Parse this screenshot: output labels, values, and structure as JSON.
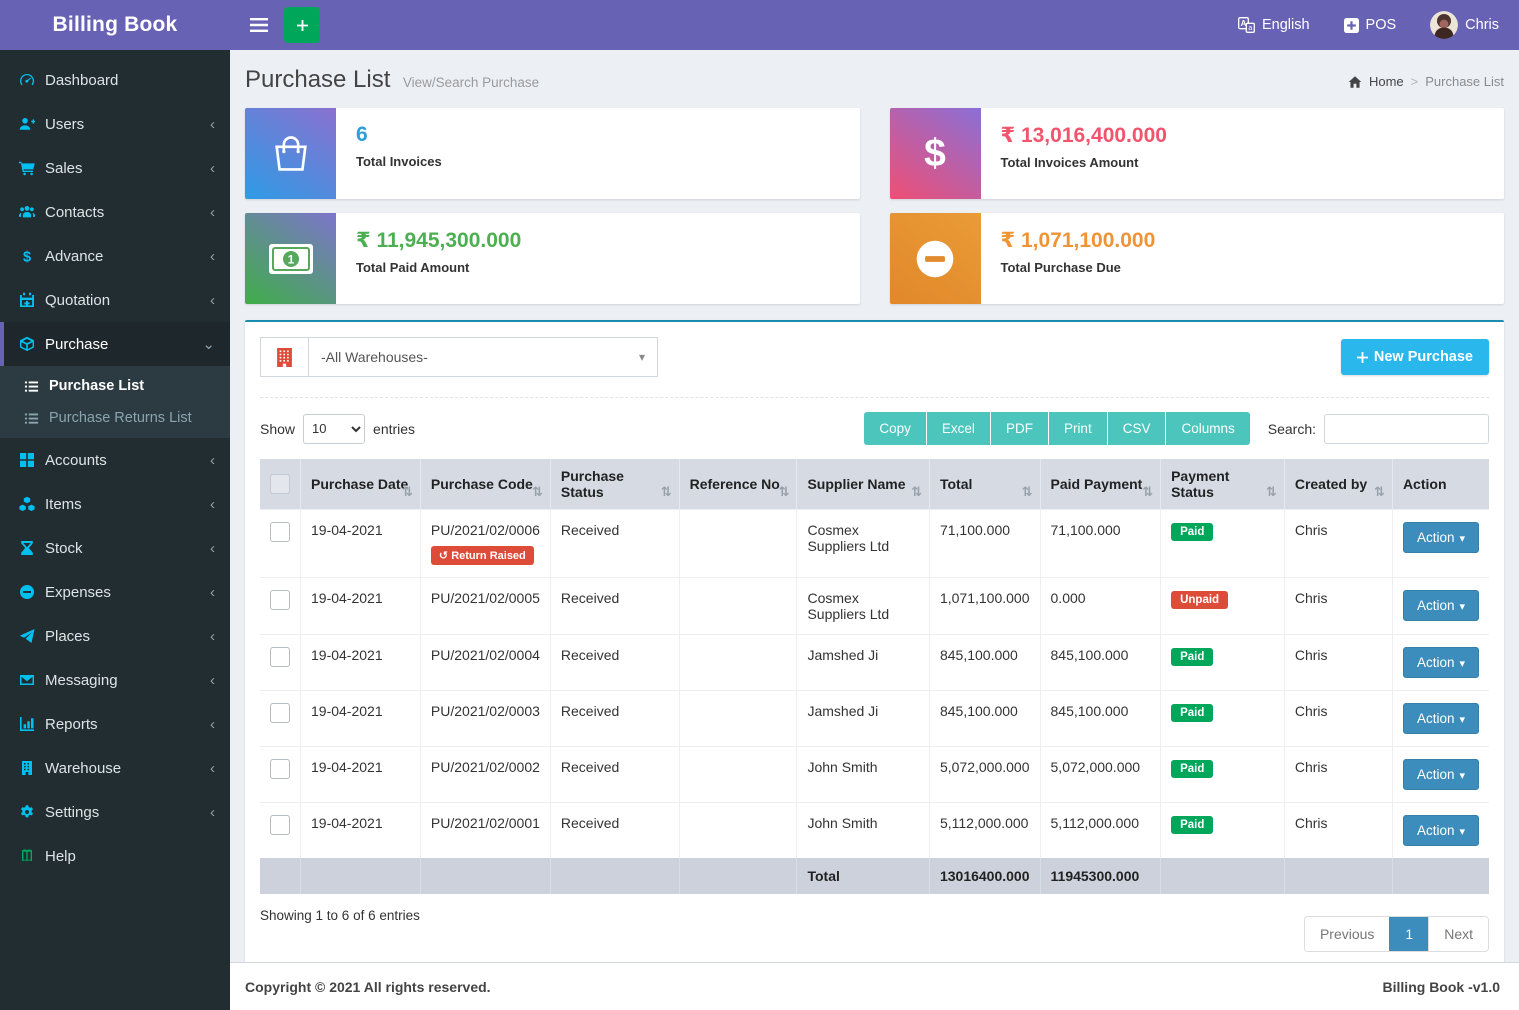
{
  "topbar": {
    "brand": "Billing Book",
    "language_label": "English",
    "pos_label": "POS",
    "user_name": "Chris"
  },
  "sidebar": {
    "items": [
      {
        "label": "Dashboard",
        "icon": "dashboard-icon"
      },
      {
        "label": "Users",
        "icon": "users-icon",
        "chevron": true
      },
      {
        "label": "Sales",
        "icon": "cart-icon",
        "chevron": true
      },
      {
        "label": "Contacts",
        "icon": "contacts-icon",
        "chevron": true
      },
      {
        "label": "Advance",
        "icon": "dollar-icon",
        "chevron": true
      },
      {
        "label": "Quotation",
        "icon": "calendar-icon",
        "chevron": true
      },
      {
        "label": "Purchase",
        "icon": "cube-icon",
        "active": true,
        "expanded": true,
        "submenu": [
          {
            "label": "Purchase List",
            "active": true
          },
          {
            "label": "Purchase Returns List",
            "active": false
          }
        ]
      },
      {
        "label": "Accounts",
        "icon": "grid-icon",
        "chevron": true
      },
      {
        "label": "Items",
        "icon": "items-icon",
        "chevron": true
      },
      {
        "label": "Stock",
        "icon": "hourglass-icon",
        "chevron": true
      },
      {
        "label": "Expenses",
        "icon": "minus-circle-icon",
        "chevron": true
      },
      {
        "label": "Places",
        "icon": "paper-plane-icon",
        "chevron": true
      },
      {
        "label": "Messaging",
        "icon": "envelope-icon",
        "chevron": true
      },
      {
        "label": "Reports",
        "icon": "chart-icon",
        "chevron": true
      },
      {
        "label": "Warehouse",
        "icon": "warehouse-icon",
        "chevron": true
      },
      {
        "label": "Settings",
        "icon": "gear-icon",
        "chevron": true
      },
      {
        "label": "Help",
        "icon": "help-icon",
        "icon_color": "#00a65a"
      }
    ]
  },
  "page": {
    "title": "Purchase List",
    "subtitle": "View/Search Purchase",
    "breadcrumb_home": "Home",
    "breadcrumb_current": "Purchase List"
  },
  "stats": [
    {
      "value": "6",
      "label": "Total Invoices",
      "value_color": "#2d9fd8",
      "icon": "bag-icon",
      "gradient": [
        "#2e9ce6",
        "#8a70cf"
      ]
    },
    {
      "value": "₹ 13,016,400.000",
      "label": "Total Invoices Amount",
      "value_color": "#f2536d",
      "icon": "dollar-big-icon",
      "gradient": [
        "#ef4f75",
        "#8a6fd6"
      ]
    },
    {
      "value": "₹ 11,945,300.000",
      "label": "Total Paid Amount",
      "value_color": "#4caf50",
      "icon": "money-icon",
      "gradient": [
        "#3fae49",
        "#7d74cc"
      ]
    },
    {
      "value": "₹ 1,071,100.000",
      "label": "Total Purchase Due",
      "value_color": "#ef9434",
      "icon": "minus-big-icon",
      "gradient": [
        "#e1882a",
        "#ea9b37"
      ]
    }
  ],
  "toolbar": {
    "warehouse_selected": "-All Warehouses-",
    "new_purchase_label": "New Purchase"
  },
  "table_controls": {
    "show_label": "Show",
    "page_size": "10",
    "entries_label": "entries",
    "export_buttons": [
      "Copy",
      "Excel",
      "PDF",
      "Print",
      "CSV",
      "Columns"
    ],
    "search_label": "Search:"
  },
  "table": {
    "headers": [
      {
        "label": "",
        "sortable": false,
        "checkbox": true
      },
      {
        "label": "Purchase Date",
        "sortable": true
      },
      {
        "label": "Purchase Code",
        "sortable": true
      },
      {
        "label": "Purchase Status",
        "sortable": true
      },
      {
        "label": "Reference No.",
        "sortable": true
      },
      {
        "label": "Supplier Name",
        "sortable": true
      },
      {
        "label": "Total",
        "sortable": true
      },
      {
        "label": "Paid Payment",
        "sortable": true
      },
      {
        "label": "Payment Status",
        "sortable": true
      },
      {
        "label": "Created by",
        "sortable": true
      },
      {
        "label": "Action",
        "sortable": false
      }
    ],
    "rows": [
      {
        "date": "19-04-2021",
        "code": "PU/2021/02/0006",
        "return_badge": "Return Raised",
        "status": "Received",
        "reference": "",
        "supplier": "Cosmex Suppliers Ltd",
        "total": "71,100.000",
        "paid": "71,100.000",
        "payment_status": "Paid",
        "payment_kind": "green",
        "created_by": "Chris",
        "action_label": "Action"
      },
      {
        "date": "19-04-2021",
        "code": "PU/2021/02/0005",
        "return_badge": null,
        "status": "Received",
        "reference": "",
        "supplier": "Cosmex Suppliers Ltd",
        "total": "1,071,100.000",
        "paid": "0.000",
        "payment_status": "Unpaid",
        "payment_kind": "red",
        "created_by": "Chris",
        "action_label": "Action"
      },
      {
        "date": "19-04-2021",
        "code": "PU/2021/02/0004",
        "return_badge": null,
        "status": "Received",
        "reference": "",
        "supplier": "Jamshed Ji",
        "total": "845,100.000",
        "paid": "845,100.000",
        "payment_status": "Paid",
        "payment_kind": "green",
        "created_by": "Chris",
        "action_label": "Action"
      },
      {
        "date": "19-04-2021",
        "code": "PU/2021/02/0003",
        "return_badge": null,
        "status": "Received",
        "reference": "",
        "supplier": "Jamshed Ji",
        "total": "845,100.000",
        "paid": "845,100.000",
        "payment_status": "Paid",
        "payment_kind": "green",
        "created_by": "Chris",
        "action_label": "Action"
      },
      {
        "date": "19-04-2021",
        "code": "PU/2021/02/0002",
        "return_badge": null,
        "status": "Received",
        "reference": "",
        "supplier": "John Smith",
        "total": "5,072,000.000",
        "paid": "5,072,000.000",
        "payment_status": "Paid",
        "payment_kind": "green",
        "created_by": "Chris",
        "action_label": "Action"
      },
      {
        "date": "19-04-2021",
        "code": "PU/2021/02/0001",
        "return_badge": null,
        "status": "Received",
        "reference": "",
        "supplier": "John Smith",
        "total": "5,112,000.000",
        "paid": "5,112,000.000",
        "payment_status": "Paid",
        "payment_kind": "green",
        "created_by": "Chris",
        "action_label": "Action"
      }
    ],
    "footer": {
      "total_label": "Total",
      "total_sum": "13016400.000",
      "paid_sum": "11945300.000"
    }
  },
  "table_info": "Showing 1 to 6 of 6 entries",
  "pagination": {
    "previous": "Previous",
    "page": "1",
    "next": "Next"
  },
  "footer": {
    "copyright": "Copyright © 2021 All rights reserved.",
    "version": "Billing Book -v1.0"
  },
  "colors": {
    "topbar": "#6862b4",
    "sidebar": "#222d32",
    "panel_accent": "#1a8cb0",
    "export_button": "#4cc5bd",
    "new_purchase_button": "#29b7ec",
    "action_button": "#3c8dbc",
    "paid_badge": "#00a65a",
    "unpaid_badge": "#dd4b39"
  }
}
